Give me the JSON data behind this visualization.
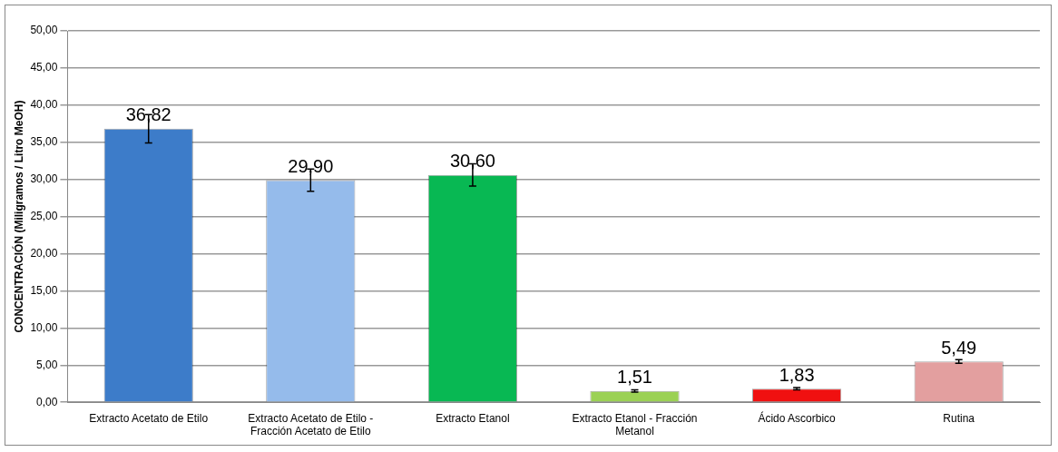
{
  "chart_data": {
    "type": "bar",
    "ylabel": "CONCENTRACIÓN (Miligramos / Litro MeOH)",
    "categories": [
      "Extracto Acetato de Etilo",
      "Extracto Acetato de Etilo - Fracción Acetato de Etilo",
      "Extracto Etanol",
      "Extracto Etanol - Fracción Metanol",
      "Ácido Ascorbico",
      "Rutina"
    ],
    "values": [
      36.82,
      29.9,
      30.6,
      1.51,
      1.83,
      5.49
    ],
    "colors": [
      "#3d7cc9",
      "#95bbeb",
      "#08b853",
      "#9bd154",
      "#f01010",
      "#e39f9f"
    ],
    "errors": [
      1.9,
      1.5,
      1.5,
      0.15,
      0.15,
      0.25
    ],
    "value_labels": [
      "36,82",
      "29,90",
      "30,60",
      "1,51",
      "1,83",
      "5,49"
    ],
    "ylim": [
      0,
      50
    ],
    "yticks": [
      {
        "value": 0,
        "label": "0,00"
      },
      {
        "value": 5,
        "label": "5,00"
      },
      {
        "value": 10,
        "label": "10,00"
      },
      {
        "value": 15,
        "label": "15,00"
      },
      {
        "value": 20,
        "label": "20,00"
      },
      {
        "value": 25,
        "label": "25,00"
      },
      {
        "value": 30,
        "label": "30,00"
      },
      {
        "value": 35,
        "label": "35,00"
      },
      {
        "value": 40,
        "label": "40,00"
      },
      {
        "value": 45,
        "label": "45,00"
      },
      {
        "value": 50,
        "label": "50,00"
      }
    ],
    "grid": "y",
    "legend": false
  }
}
